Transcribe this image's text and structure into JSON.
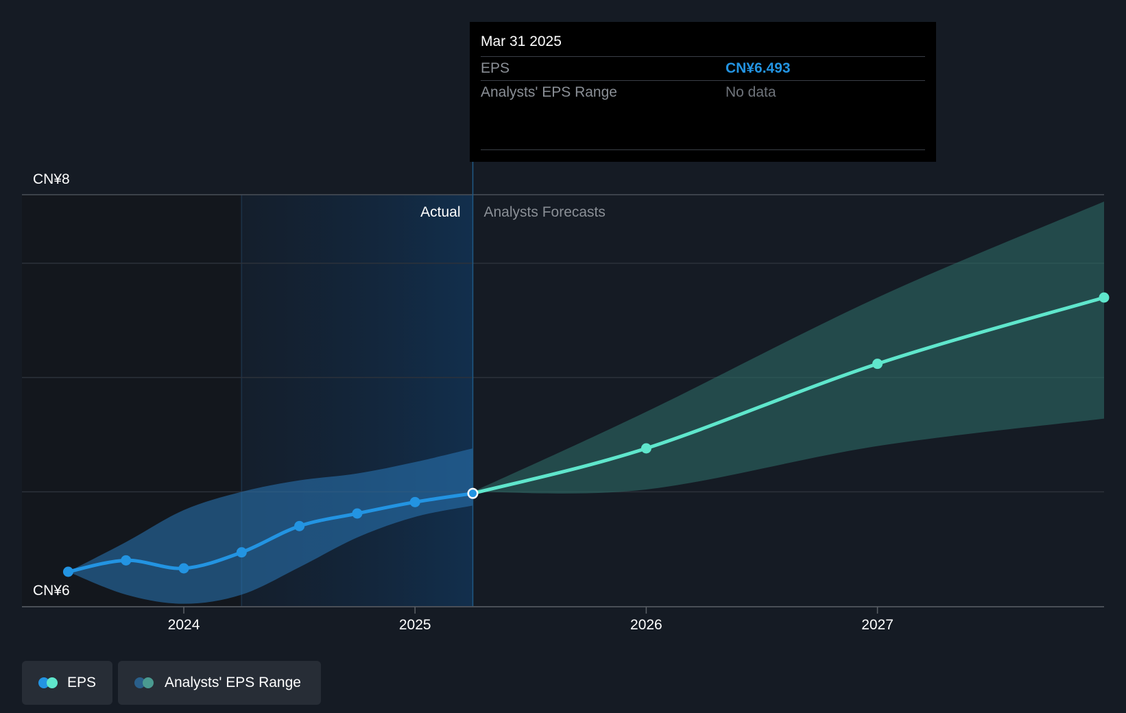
{
  "chart_data": {
    "type": "line",
    "title": "",
    "xlabel": "",
    "ylabel": "",
    "y_labels": [
      "CN¥8",
      "CN¥6"
    ],
    "x_ticks": [
      "2024",
      "2025",
      "2026",
      "2027"
    ],
    "x_tick_years": [
      2024,
      2025,
      2026,
      2027
    ],
    "xlim": [
      2023.3,
      2027.98
    ],
    "ylim": [
      6,
      7.8
    ],
    "grid": "horizontal",
    "section_labels": {
      "actual": "Actual",
      "forecast": "Analysts Forecasts"
    },
    "split_x": 2025.25,
    "actual_start_x": 2024.25,
    "series": [
      {
        "name": "EPS",
        "color": "#2394e2",
        "points": [
          [
            2023.5,
            6.15
          ],
          [
            2023.75,
            6.2
          ],
          [
            2024.0,
            6.165
          ],
          [
            2024.25,
            6.235
          ],
          [
            2024.5,
            6.35
          ],
          [
            2024.75,
            6.405
          ],
          [
            2025.0,
            6.455
          ],
          [
            2025.25,
            6.493
          ]
        ]
      },
      {
        "name": "EPS Forecast",
        "color": "#5fe6cc",
        "points": [
          [
            2025.25,
            6.493
          ],
          [
            2026.0,
            6.69
          ],
          [
            2027.0,
            7.06
          ],
          [
            2027.98,
            7.35
          ]
        ]
      }
    ],
    "ranges": [
      {
        "name": "Analysts' EPS Range",
        "color": "#2a78b8",
        "upper": [
          [
            2023.5,
            6.15
          ],
          [
            2023.75,
            6.28
          ],
          [
            2024.0,
            6.42
          ],
          [
            2024.25,
            6.5
          ],
          [
            2024.5,
            6.55
          ],
          [
            2024.75,
            6.58
          ],
          [
            2025.0,
            6.63
          ],
          [
            2025.25,
            6.69
          ]
        ],
        "lower": [
          [
            2023.5,
            6.15
          ],
          [
            2023.75,
            6.05
          ],
          [
            2024.0,
            6.01
          ],
          [
            2024.25,
            6.05
          ],
          [
            2024.5,
            6.17
          ],
          [
            2024.75,
            6.3
          ],
          [
            2025.0,
            6.39
          ],
          [
            2025.25,
            6.44
          ]
        ]
      },
      {
        "name": "Analysts' EPS Range",
        "color": "#2d6b66",
        "upper": [
          [
            2025.25,
            6.5
          ],
          [
            2026.0,
            6.85
          ],
          [
            2027.0,
            7.35
          ],
          [
            2027.98,
            7.77
          ]
        ],
        "lower": [
          [
            2025.25,
            6.5
          ],
          [
            2026.0,
            6.51
          ],
          [
            2027.0,
            6.7
          ],
          [
            2027.98,
            6.82
          ]
        ]
      }
    ],
    "highlight": {
      "x": 2025.25,
      "y": 6.493
    }
  },
  "tooltip": {
    "date": "Mar 31 2025",
    "eps_label": "EPS",
    "eps_value": "CN¥6.493",
    "range_label": "Analysts' EPS Range",
    "range_value": "No data"
  },
  "legend": {
    "eps_label": "EPS",
    "range_label": "Analysts' EPS Range",
    "eps_colors": [
      "#2394e2",
      "#5fe6cc"
    ],
    "range_colors": [
      "#2a5f8a",
      "#4a9a90"
    ]
  }
}
